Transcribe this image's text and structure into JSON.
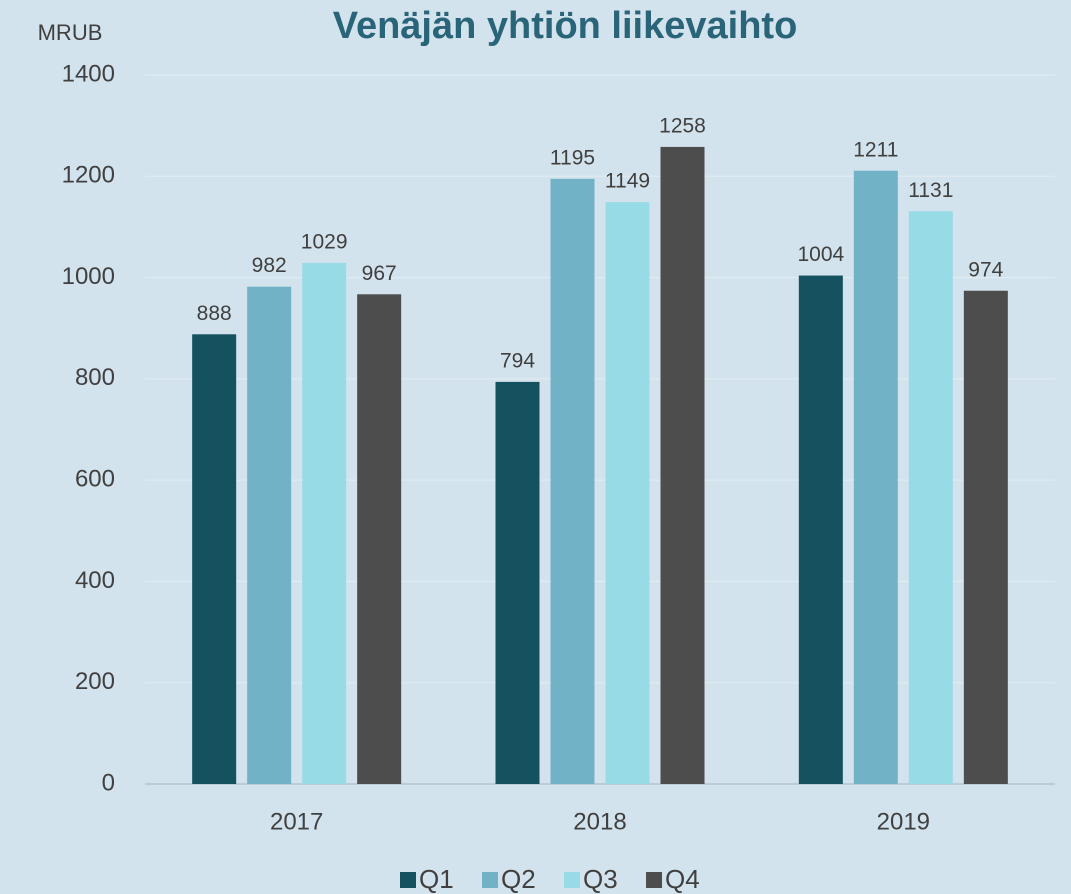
{
  "chart_data": {
    "type": "bar",
    "title": "Venäjän yhtiön liikevaihto",
    "ylabel": "MRUB",
    "categories": [
      "2017",
      "2018",
      "2019"
    ],
    "series": [
      {
        "name": "Q1",
        "color": "#14525f",
        "values": [
          888,
          794,
          1004
        ]
      },
      {
        "name": "Q2",
        "color": "#72b2c6",
        "values": [
          982,
          1195,
          1211
        ]
      },
      {
        "name": "Q3",
        "color": "#97dbe6",
        "values": [
          1029,
          1149,
          1131
        ]
      },
      {
        "name": "Q4",
        "color": "#4d4d4d",
        "values": [
          967,
          1258,
          974
        ]
      }
    ],
    "ylim": [
      0,
      1400
    ],
    "yticks": [
      0,
      200,
      400,
      600,
      800,
      1000,
      1200,
      1400
    ],
    "grid": true,
    "legend": "bottom"
  }
}
